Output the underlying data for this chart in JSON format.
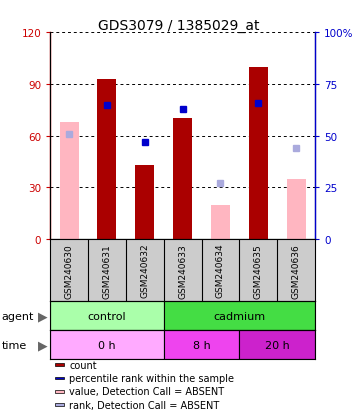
{
  "title": "GDS3079 / 1385029_at",
  "samples": [
    "GSM240630",
    "GSM240631",
    "GSM240632",
    "GSM240633",
    "GSM240634",
    "GSM240635",
    "GSM240636"
  ],
  "count_values": [
    null,
    93,
    43,
    70,
    null,
    100,
    null
  ],
  "percentile_rank": [
    null,
    65,
    47,
    63,
    null,
    66,
    null
  ],
  "value_absent": [
    68,
    null,
    null,
    null,
    20,
    null,
    35
  ],
  "rank_absent": [
    51,
    null,
    null,
    null,
    27,
    null,
    44
  ],
  "ylim_left": [
    0,
    120
  ],
  "ylim_right": [
    0,
    100
  ],
  "yticks_left": [
    0,
    30,
    60,
    90,
    120
  ],
  "ytick_labels_left": [
    "0",
    "30",
    "60",
    "90",
    "120"
  ],
  "yticks_right": [
    0,
    25,
    50,
    75,
    100
  ],
  "ytick_labels_right": [
    "0",
    "25",
    "50",
    "75",
    "100%"
  ],
  "agent_control_color": "#AAFFAA",
  "agent_cadmium_color": "#44DD44",
  "time_0h_color": "#FFAAFF",
  "time_8h_color": "#EE44EE",
  "time_20h_color": "#CC22CC",
  "bar_color_count": "#AA0000",
  "bar_color_rank": "#0000CC",
  "bar_color_value_absent": "#FFB6C1",
  "bar_color_rank_absent": "#AAAADD",
  "left_axis_color": "#CC0000",
  "right_axis_color": "#0000CC",
  "legend_items": [
    {
      "color": "#AA0000",
      "label": "count"
    },
    {
      "color": "#0000CC",
      "label": "percentile rank within the sample"
    },
    {
      "color": "#FFB6C1",
      "label": "value, Detection Call = ABSENT"
    },
    {
      "color": "#AAAADD",
      "label": "rank, Detection Call = ABSENT"
    }
  ]
}
